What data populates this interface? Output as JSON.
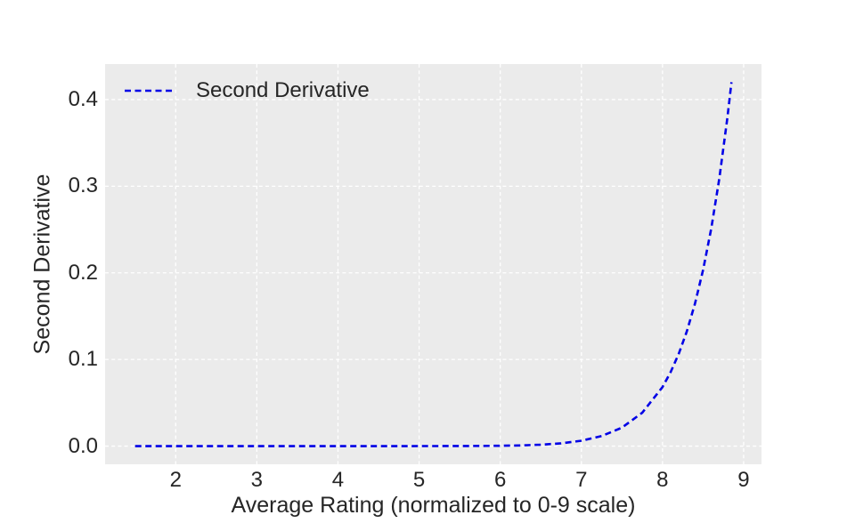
{
  "colors": {
    "figure_background": "#ffffff",
    "plot_background": "#ebebeb",
    "grid": "#ffffff",
    "text": "#262626",
    "line": "#0000e6"
  },
  "chart_data": {
    "type": "line",
    "title": "",
    "xlabel": "Average Rating (normalized to 0-9 scale)",
    "ylabel": "Second Derivative",
    "xlim": [
      1.13,
      9.22
    ],
    "ylim": [
      -0.021,
      0.441
    ],
    "xticks": [
      2,
      3,
      4,
      5,
      6,
      7,
      8,
      9
    ],
    "xtick_labels": [
      "2",
      "3",
      "4",
      "5",
      "6",
      "7",
      "8",
      "9"
    ],
    "yticks": [
      0.0,
      0.1,
      0.2,
      0.3,
      0.4
    ],
    "ytick_labels": [
      "0.0",
      "0.1",
      "0.2",
      "0.3",
      "0.4"
    ],
    "grid": true,
    "grid_style": "white-dashed",
    "legend_position": "upper-left",
    "series": [
      {
        "name": "Second Derivative",
        "color": "#0000e6",
        "line_style": "dashed",
        "points": [
          [
            1.5,
            0
          ],
          [
            2.0,
            0
          ],
          [
            2.5,
            0
          ],
          [
            3.0,
            0
          ],
          [
            3.5,
            0
          ],
          [
            4.0,
            0
          ],
          [
            4.5,
            1e-05
          ],
          [
            5.0,
            4e-05
          ],
          [
            5.5,
            8e-05
          ],
          [
            6.0,
            0.00038
          ],
          [
            6.25,
            0.0008
          ],
          [
            6.5,
            0.0016
          ],
          [
            6.75,
            0.0032
          ],
          [
            7.0,
            0.0062
          ],
          [
            7.25,
            0.0116
          ],
          [
            7.5,
            0.0213
          ],
          [
            7.75,
            0.0385
          ],
          [
            8.0,
            0.0682
          ],
          [
            8.1,
            0.0854
          ],
          [
            8.2,
            0.1065
          ],
          [
            8.3,
            0.1325
          ],
          [
            8.4,
            0.1644
          ],
          [
            8.5,
            0.2033
          ],
          [
            8.6,
            0.2508
          ],
          [
            8.7,
            0.3088
          ],
          [
            8.8,
            0.3793
          ],
          [
            8.85,
            0.42
          ]
        ]
      }
    ]
  }
}
